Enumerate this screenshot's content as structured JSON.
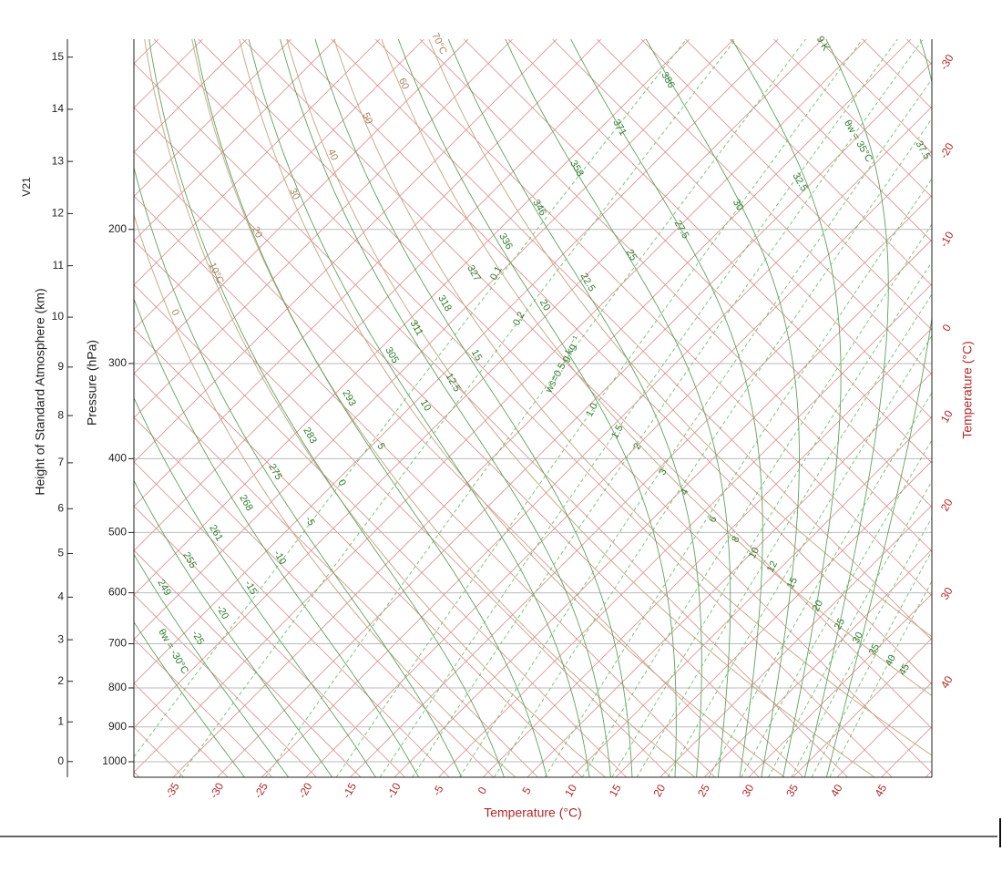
{
  "side_label": "V21",
  "height_axis": {
    "title": "Height of Standard Atmosphere (km)",
    "ticks": [
      0,
      1,
      2,
      3,
      4,
      5,
      6,
      7,
      8,
      9,
      10,
      11,
      12,
      13,
      14,
      15
    ]
  },
  "pressure_axis": {
    "title": "Pressure (hPa)",
    "ticks": [
      1000,
      900,
      800,
      700,
      600,
      500,
      400,
      300,
      200
    ]
  },
  "temperature_axis_bottom": {
    "title": "Temperature (°C)",
    "ticks": [
      -35,
      -30,
      -25,
      -20,
      -15,
      -10,
      -5,
      0,
      5,
      10,
      15,
      20,
      25,
      30,
      35,
      40,
      45
    ]
  },
  "temperature_axis_right": {
    "title": "Temperature (°C)",
    "ticks": [
      -30,
      -20,
      -10,
      0,
      10,
      20,
      30,
      40
    ]
  },
  "dry_adiabats": [
    0,
    {
      "value": 10,
      "label": "10°C"
    },
    20,
    30,
    40,
    50,
    60,
    {
      "value": 70,
      "label": "70°C"
    }
  ],
  "moist_adiabats": [
    {
      "value": -30,
      "label": "θw = -30°C"
    },
    -25,
    -20,
    -15,
    -10,
    -5,
    0,
    5,
    10,
    12.5,
    15,
    20,
    22.5,
    25,
    27.5,
    30,
    32.5,
    {
      "value": 35,
      "label": "θw = 35°C"
    },
    37.5
  ],
  "equivalent_potential_temperature_labels": [
    249,
    255,
    261,
    268,
    275,
    283,
    293,
    305,
    311,
    318,
    327,
    336,
    346,
    358,
    371,
    386,
    "9 K"
  ],
  "mixing_ratios": [
    0.1,
    0.2,
    {
      "value": 0.5,
      "label": "ws=0.5 g kg⁻¹"
    },
    {
      "value": 1,
      "label": "1.0"
    },
    1.5,
    2,
    3,
    4,
    6,
    8,
    10,
    12,
    15,
    20,
    25,
    30,
    35,
    40,
    45
  ]
}
